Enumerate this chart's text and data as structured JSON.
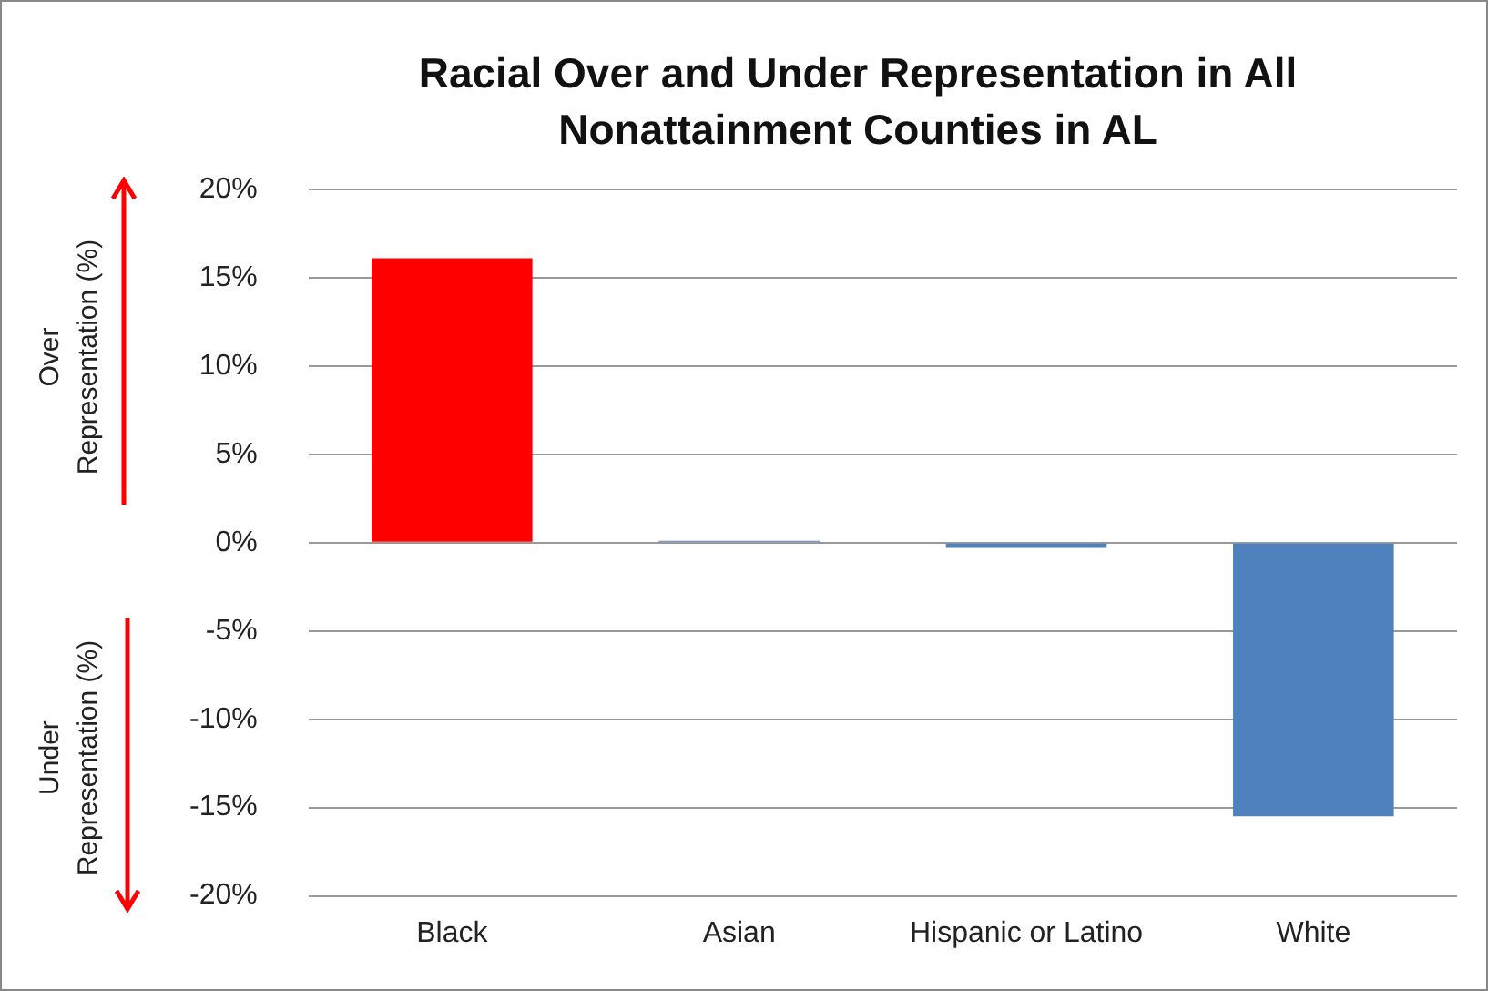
{
  "chart_data": {
    "type": "bar",
    "title": "Racial Over and Under Representation in All Nonattainment Counties in AL",
    "categories": [
      "Black",
      "Asian",
      "Hispanic or Latino",
      "White"
    ],
    "values": [
      16.1,
      0.1,
      -0.3,
      -15.5
    ],
    "colors": [
      "#ff0000",
      "#4f81bd",
      "#4f81bd",
      "#4f81bd"
    ],
    "ylim": [
      -20,
      20
    ],
    "yticks": [
      {
        "value": -20,
        "label": "-20%"
      },
      {
        "value": -15,
        "label": "-15%"
      },
      {
        "value": -10,
        "label": "-10%"
      },
      {
        "value": -5,
        "label": "-5%"
      },
      {
        "value": 0,
        "label": "0%"
      },
      {
        "value": 5,
        "label": "5%"
      },
      {
        "value": 10,
        "label": "10%"
      },
      {
        "value": 15,
        "label": "15%"
      },
      {
        "value": 20,
        "label": "20%"
      }
    ],
    "annotations": [
      "Over\nRepresentation (%)",
      "Under\nRepresentation (%)"
    ],
    "grid": "y",
    "legend": false
  }
}
